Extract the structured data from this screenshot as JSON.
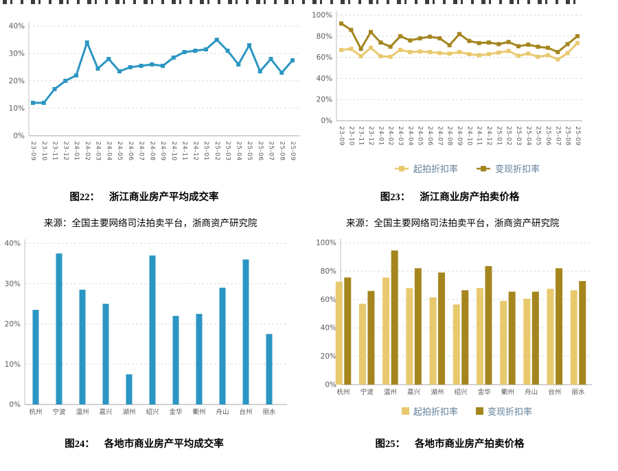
{
  "page": {
    "background": "#ffffff",
    "top_text_clipped": true
  },
  "colors": {
    "blue": "#2B96C3",
    "light_gold": "#E9C96E",
    "dark_gold": "#A5851E",
    "grid": "#D9D9D9",
    "axis": "#A6A6A6",
    "axis_light": "#BFBFBF",
    "tick_text": "#595959",
    "legend_text": "#5E7E99"
  },
  "legend": {
    "start_label": "起拍折扣率",
    "realize_label": "变现折扣率"
  },
  "captions": {
    "fig22": {
      "label": "图22：",
      "title": "浙江商业房产平均成交率"
    },
    "fig23": {
      "label": "图23：",
      "title": "浙江商业房产拍卖价格"
    },
    "fig24": {
      "label": "图24：",
      "title": "各地市商业房产平均成交率"
    },
    "fig25": {
      "label": "图25：",
      "title": "各地市商业房产拍卖价格"
    }
  },
  "source_note": "来源：全国主要网络司法拍卖平台，浙商资产研究院",
  "months": [
    "23-09",
    "23-10",
    "23-11",
    "23-12",
    "24-01",
    "24-02",
    "24-03",
    "24-04",
    "24-05",
    "24-06",
    "24-07",
    "24-08",
    "24-09",
    "24-10",
    "24-11",
    "24-12",
    "25-01",
    "25-02",
    "25-03",
    "25-04",
    "25-05",
    "25-06",
    "25-07",
    "25-08",
    "25-09"
  ],
  "cities": [
    "杭州",
    "宁波",
    "温州",
    "嘉兴",
    "湖州",
    "绍兴",
    "金华",
    "衢州",
    "舟山",
    "台州",
    "丽水"
  ],
  "chart_data": [
    {
      "id": "fig22",
      "type": "line",
      "title": "浙江商业房产平均成交率",
      "ylim": [
        0,
        40
      ],
      "yticks": [
        0,
        10,
        20,
        30,
        40
      ],
      "grid": "dashed",
      "legend": "none",
      "x": [
        "23-09",
        "23-10",
        "23-11",
        "23-12",
        "24-01",
        "24-02",
        "24-03",
        "24-04",
        "24-05",
        "24-06",
        "24-07",
        "24-08",
        "24-09",
        "24-10",
        "24-11",
        "24-12",
        "25-01",
        "25-02",
        "25-03",
        "25-04",
        "25-05",
        "25-06",
        "25-07",
        "25-08",
        "25-09"
      ],
      "series": [
        {
          "name": "",
          "color": "#2B96C3",
          "values": [
            12,
            12,
            17,
            20,
            22,
            34,
            24.5,
            28,
            23.5,
            25,
            25.5,
            26,
            25.5,
            28.5,
            30.5,
            31,
            31.5,
            35,
            31,
            26,
            33,
            23.5,
            28,
            23,
            27.5
          ]
        }
      ]
    },
    {
      "id": "fig23",
      "type": "line",
      "title": "浙江商业房产拍卖价格",
      "ylim": [
        0,
        100
      ],
      "yticks": [
        0,
        20,
        40,
        60,
        80,
        100
      ],
      "grid": "dashed",
      "legend": "bottom",
      "x": [
        "23-09",
        "23-10",
        "23-11",
        "23-12",
        "24-01",
        "24-02",
        "24-03",
        "24-04",
        "24-05",
        "24-06",
        "24-07",
        "24-08",
        "24-09",
        "24-10",
        "24-11",
        "24-12",
        "25-01",
        "25-02",
        "25-03",
        "25-04",
        "25-05",
        "25-06",
        "25-07",
        "25-08",
        "25-09"
      ],
      "series": [
        {
          "name": "起拍折扣率",
          "color": "#E9C96E",
          "values": [
            67,
            68,
            61,
            69,
            61,
            60.5,
            67,
            65,
            65.5,
            65,
            64,
            63.5,
            65,
            63,
            62,
            63,
            64.5,
            66,
            61.5,
            63.5,
            60.5,
            62,
            58,
            64,
            73.5
          ]
        },
        {
          "name": "变现折扣率",
          "color": "#A5851E",
          "values": [
            92,
            86,
            68,
            84,
            74,
            70,
            80,
            76,
            78,
            79.5,
            78,
            71.5,
            82,
            75.5,
            73.5,
            74,
            72.5,
            74.5,
            70.5,
            72,
            70,
            69,
            65,
            72.5,
            80
          ]
        }
      ]
    },
    {
      "id": "fig24",
      "type": "bar",
      "title": "各地市商业房产平均成交率",
      "ylim": [
        0,
        40
      ],
      "yticks": [
        0,
        10,
        20,
        30,
        40
      ],
      "grid": "dashed",
      "legend": "none",
      "categories": [
        "杭州",
        "宁波",
        "温州",
        "嘉兴",
        "湖州",
        "绍兴",
        "金华",
        "衢州",
        "舟山",
        "台州",
        "丽水"
      ],
      "series": [
        {
          "name": "",
          "color": "#2B96C3",
          "values": [
            23.5,
            37.5,
            28.5,
            25,
            7.5,
            37,
            22,
            22.5,
            29,
            36,
            17.5
          ]
        }
      ]
    },
    {
      "id": "fig25",
      "type": "bar",
      "title": "各地市商业房产拍卖价格",
      "ylim": [
        0,
        100
      ],
      "yticks": [
        0,
        20,
        40,
        60,
        80,
        100
      ],
      "grid": "dashed",
      "legend": "bottom",
      "categories": [
        "杭州",
        "宁波",
        "温州",
        "嘉兴",
        "湖州",
        "绍兴",
        "金华",
        "衢州",
        "舟山",
        "台州",
        "丽水"
      ],
      "series": [
        {
          "name": "起拍折扣率",
          "color": "#E9C96E",
          "values": [
            72.5,
            57,
            75.5,
            68,
            61.5,
            56.5,
            68,
            59,
            60.5,
            67.5,
            66.5
          ]
        },
        {
          "name": "变现折扣率",
          "color": "#A5851E",
          "values": [
            75.5,
            66,
            94.5,
            82,
            79,
            66.5,
            83.5,
            65.5,
            65.5,
            82,
            73
          ]
        }
      ]
    }
  ]
}
